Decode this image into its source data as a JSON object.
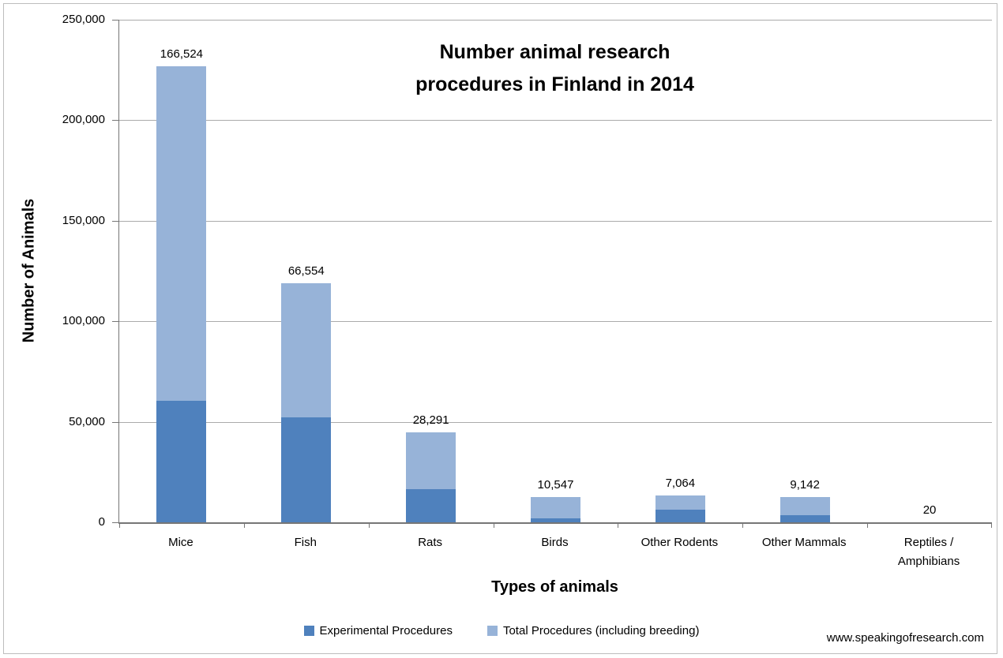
{
  "title": {
    "line1": "Number animal research",
    "line2": "procedures in Finland in 2014"
  },
  "y_axis": {
    "title": "Number of Animals",
    "tick_labels": [
      "250,000",
      "200,000",
      "150,000",
      "100,000",
      "50,000",
      "0"
    ]
  },
  "x_axis": {
    "title": "Types of animals",
    "categories": [
      {
        "label": "Mice",
        "lines": [
          "Mice"
        ]
      },
      {
        "label": "Fish",
        "lines": [
          "Fish"
        ]
      },
      {
        "label": "Rats",
        "lines": [
          "Rats"
        ]
      },
      {
        "label": "Birds",
        "lines": [
          "Birds"
        ]
      },
      {
        "label": "Other Rodents",
        "lines": [
          "Other Rodents"
        ]
      },
      {
        "label": "Other Mammals",
        "lines": [
          "Other Mammals"
        ]
      },
      {
        "label": "Reptiles / Amphibians",
        "lines": [
          "Reptiles /",
          "Amphibians"
        ]
      }
    ]
  },
  "legend": {
    "items": [
      {
        "label": "Experimental Procedures",
        "color": "#4F81BD"
      },
      {
        "label": "Total Procedures (including breeding)",
        "color": "#97B3D8"
      }
    ]
  },
  "watermark": "www.speakingofresearch.com",
  "colors": {
    "experimental_series": "#4F81BD",
    "total_series": "#97B3D8",
    "gridline": "#ABABAB",
    "axis": "#767676",
    "text": "#000000",
    "background": "#FFFFFF"
  },
  "chart_data": {
    "type": "bar",
    "stacked": true,
    "title": "Number animal research procedures in Finland in 2014",
    "xlabel": "Types of animals",
    "ylabel": "Number of Animals",
    "ylim": [
      0,
      250000
    ],
    "yticks": [
      0,
      50000,
      100000,
      150000,
      200000,
      250000
    ],
    "grid": true,
    "legend_position": "bottom",
    "categories": [
      "Mice",
      "Fish",
      "Rats",
      "Birds",
      "Other Rodents",
      "Other Mammals",
      "Reptiles / Amphibians"
    ],
    "series": [
      {
        "name": "Experimental Procedures",
        "color": "#4F81BD",
        "values": [
          60500,
          52300,
          16600,
          2000,
          6300,
          3400,
          0
        ]
      },
      {
        "name": "Total Procedures (including breeding)",
        "color": "#97B3D8",
        "values": [
          166524,
          66554,
          28291,
          10547,
          7064,
          9142,
          20
        ],
        "data_labels": [
          "166,524",
          "66,554",
          "28,291",
          "10,547",
          "7,064",
          "9,142",
          "20"
        ]
      }
    ]
  }
}
